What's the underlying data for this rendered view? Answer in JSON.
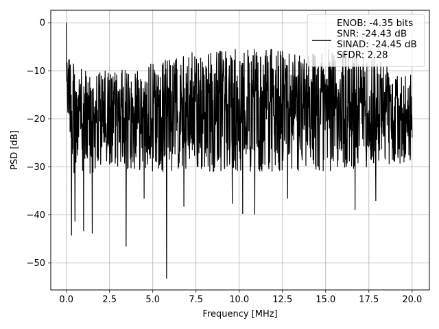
{
  "chart_data": {
    "type": "line",
    "title": "",
    "xlabel": "Frequency [MHz]",
    "ylabel": "PSD [dB]",
    "xlim": [
      -0.9,
      21.0
    ],
    "ylim": [
      -55.6,
      2.6
    ],
    "xticks": [
      0.0,
      2.5,
      5.0,
      7.5,
      10.0,
      12.5,
      15.0,
      17.5,
      20.0
    ],
    "xtick_labels": [
      "0.0",
      "2.5",
      "5.0",
      "7.5",
      "10.0",
      "12.5",
      "15.0",
      "17.5",
      "20.0"
    ],
    "yticks": [
      0,
      -10,
      -20,
      -30,
      -40,
      -50
    ],
    "ytick_labels": [
      "0",
      "−10",
      "−20",
      "−30",
      "−40",
      "−50"
    ],
    "grid": true,
    "legend_position": "top-right",
    "series": [
      {
        "name": "ENOB: -4.35 bits\nSNR: -24.43 dB\nSINAD: -24.45 dB\nSFDR: 2.28",
        "legend_lines": [
          "ENOB: -4.35 bits",
          "SNR: -24.43 dB",
          "SINAD: -24.45 dB",
          "SFDR: 2.28"
        ],
        "color": "#000000",
        "description": "noise-like power spectral density, approx. 2000 bins from 0 to 20 MHz",
        "band_top_approx": [
          [
            0.0,
            0
          ],
          [
            0.3,
            -8
          ],
          [
            1.0,
            -10
          ],
          [
            3.0,
            -10
          ],
          [
            7.5,
            -6
          ],
          [
            10.0,
            -5.5
          ],
          [
            12.5,
            -5.5
          ],
          [
            15.0,
            -5.5
          ],
          [
            17.5,
            -6
          ],
          [
            20.0,
            -10
          ]
        ],
        "band_bottom_approx": [
          [
            0.0,
            -18
          ],
          [
            0.5,
            -33
          ],
          [
            2.5,
            -30
          ],
          [
            5.0,
            -31
          ],
          [
            10.0,
            -31
          ],
          [
            15.0,
            -31
          ],
          [
            20.0,
            -29
          ]
        ],
        "notable_values": [
          {
            "x": 0.0,
            "y": 0.0
          },
          {
            "x": 0.3,
            "y": -44.2
          },
          {
            "x": 0.5,
            "y": -41.3
          },
          {
            "x": 1.0,
            "y": -43.3
          },
          {
            "x": 1.5,
            "y": -43.8
          },
          {
            "x": 3.45,
            "y": -46.5
          },
          {
            "x": 4.5,
            "y": -36.5
          },
          {
            "x": 5.8,
            "y": -53.2
          },
          {
            "x": 6.8,
            "y": -38.2
          },
          {
            "x": 9.6,
            "y": -37.6
          },
          {
            "x": 10.2,
            "y": -39.7
          },
          {
            "x": 10.9,
            "y": -39.8
          },
          {
            "x": 12.8,
            "y": -36.5
          },
          {
            "x": 16.7,
            "y": -38.9
          },
          {
            "x": 17.9,
            "y": -37.0
          }
        ]
      }
    ]
  }
}
